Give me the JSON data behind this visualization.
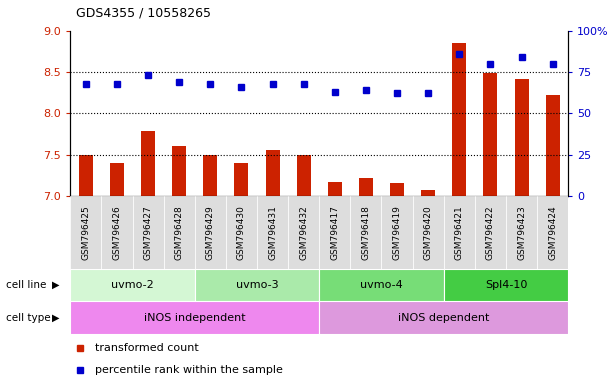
{
  "title": "GDS4355 / 10558265",
  "samples": [
    "GSM796425",
    "GSM796426",
    "GSM796427",
    "GSM796428",
    "GSM796429",
    "GSM796430",
    "GSM796431",
    "GSM796432",
    "GSM796417",
    "GSM796418",
    "GSM796419",
    "GSM796420",
    "GSM796421",
    "GSM796422",
    "GSM796423",
    "GSM796424"
  ],
  "transformed_count": [
    7.5,
    7.4,
    7.78,
    7.6,
    7.5,
    7.4,
    7.55,
    7.5,
    7.17,
    7.22,
    7.15,
    7.07,
    8.85,
    8.49,
    8.42,
    8.22
  ],
  "percentile_rank": [
    68,
    68,
    73,
    69,
    68,
    66,
    68,
    68,
    63,
    64,
    62,
    62,
    86,
    80,
    84,
    80
  ],
  "cell_lines": [
    {
      "name": "uvmo-2",
      "start": 0,
      "end": 4,
      "color": "#d4f7d4"
    },
    {
      "name": "uvmo-3",
      "start": 4,
      "end": 8,
      "color": "#aaeaaa"
    },
    {
      "name": "uvmo-4",
      "start": 8,
      "end": 12,
      "color": "#77dd77"
    },
    {
      "name": "Spl4-10",
      "start": 12,
      "end": 16,
      "color": "#44cc44"
    }
  ],
  "cell_types": [
    {
      "name": "iNOS independent",
      "start": 0,
      "end": 8,
      "color": "#ee88ee"
    },
    {
      "name": "iNOS dependent",
      "start": 8,
      "end": 16,
      "color": "#dd99dd"
    }
  ],
  "ylim_left": [
    7,
    9
  ],
  "ylim_right": [
    0,
    100
  ],
  "yticks_left": [
    7,
    7.5,
    8,
    8.5,
    9
  ],
  "yticks_right": [
    0,
    25,
    50,
    75,
    100
  ],
  "bar_color": "#cc2200",
  "dot_color": "#0000cc",
  "gridlines": [
    7.5,
    8.0,
    8.5
  ],
  "legend_items": [
    {
      "label": "transformed count",
      "color": "#cc2200"
    },
    {
      "label": "percentile rank within the sample",
      "color": "#0000cc"
    }
  ]
}
